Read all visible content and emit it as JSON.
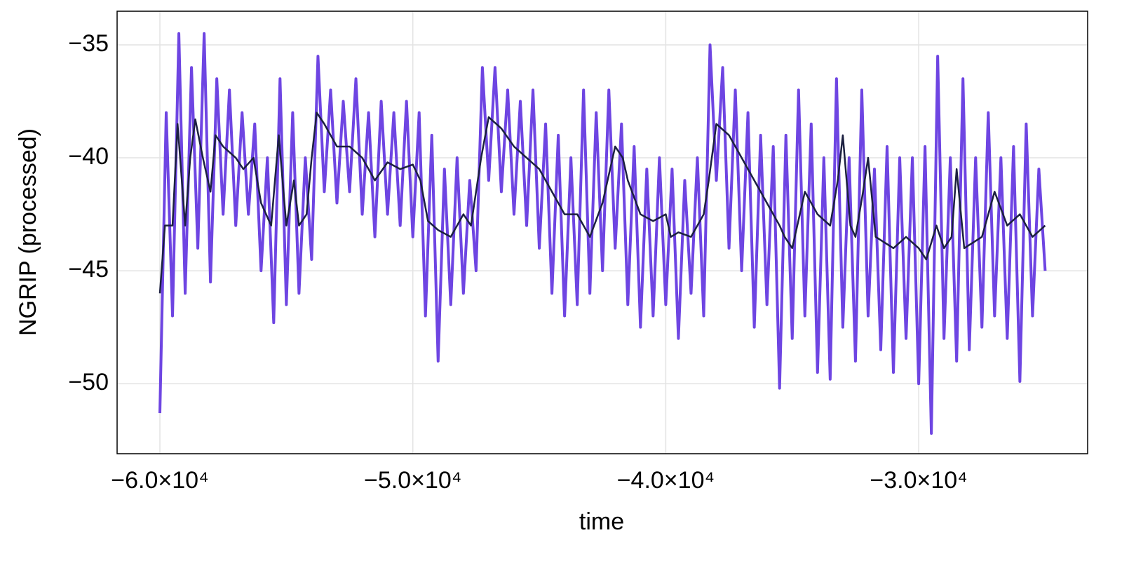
{
  "chart_data": {
    "type": "line",
    "xlabel": "time",
    "ylabel": "NGRIP (processed)",
    "xlim": [
      -61691,
      -23321
    ],
    "ylim": [
      -53.1,
      -33.51
    ],
    "xticks": [
      {
        "value": -60000,
        "label": "−6.0×10⁴"
      },
      {
        "value": -50000,
        "label": "−5.0×10⁴"
      },
      {
        "value": -40000,
        "label": "−4.0×10⁴"
      },
      {
        "value": -30000,
        "label": "−3.0×10⁴"
      }
    ],
    "yticks": [
      {
        "value": -35,
        "label": "−35"
      },
      {
        "value": -40,
        "label": "−40"
      },
      {
        "value": -45,
        "label": "−45"
      },
      {
        "value": -50,
        "label": "−50"
      }
    ],
    "grid": true,
    "series": [
      {
        "color": "#6e45e2",
        "width": 4,
        "x": [
          -60000,
          -59750,
          -59500,
          -59250,
          -59000,
          -58750,
          -58500,
          -58250,
          -58000,
          -57750,
          -57500,
          -57250,
          -57000,
          -56750,
          -56500,
          -56250,
          -56000,
          -55750,
          -55500,
          -55250,
          -55000,
          -54750,
          -54500,
          -54250,
          -54000,
          -53750,
          -53500,
          -53250,
          -53000,
          -52750,
          -52500,
          -52250,
          -52000,
          -51750,
          -51500,
          -51250,
          -51000,
          -50750,
          -50500,
          -50250,
          -50000,
          -49750,
          -49500,
          -49250,
          -49000,
          -48750,
          -48500,
          -48250,
          -48000,
          -47750,
          -47500,
          -47250,
          -47000,
          -46750,
          -46500,
          -46250,
          -46000,
          -45750,
          -45500,
          -45250,
          -45000,
          -44750,
          -44500,
          -44250,
          -44000,
          -43750,
          -43500,
          -43250,
          -43000,
          -42750,
          -42500,
          -42250,
          -42000,
          -41750,
          -41500,
          -41250,
          -41000,
          -40750,
          -40500,
          -40250,
          -40000,
          -39750,
          -39500,
          -39250,
          -39000,
          -38750,
          -38500,
          -38250,
          -38000,
          -37750,
          -37500,
          -37250,
          -37000,
          -36750,
          -36500,
          -36250,
          -36000,
          -35750,
          -35500,
          -35250,
          -35000,
          -34750,
          -34500,
          -34250,
          -34000,
          -33750,
          -33500,
          -33250,
          -33000,
          -32750,
          -32500,
          -32250,
          -32000,
          -31750,
          -31500,
          -31250,
          -31000,
          -30750,
          -30500,
          -30250,
          -30000,
          -29750,
          -29500,
          -29250,
          -29000,
          -28750,
          -28500,
          -28250,
          -28000,
          -27750,
          -27500,
          -27250,
          -27000,
          -26750,
          -26500,
          -26250,
          -26000,
          -25750,
          -25500,
          -25250,
          -25000
        ],
        "values": [
          -51.3,
          -38,
          -47,
          -34.5,
          -46,
          -36,
          -44,
          -34.5,
          -45.5,
          -36.5,
          -42.5,
          -37,
          -43,
          -38,
          -42.5,
          -38.5,
          -45,
          -40,
          -47.3,
          -36.5,
          -46.5,
          -38,
          -46,
          -40,
          -44.5,
          -35.5,
          -41.5,
          -37,
          -42,
          -37.5,
          -41.5,
          -36.5,
          -42.5,
          -38,
          -43.5,
          -37.5,
          -42.5,
          -38,
          -43,
          -37.5,
          -43.5,
          -38,
          -47,
          -39,
          -49,
          -40.5,
          -46.5,
          -40,
          -46,
          -41,
          -45,
          -36,
          -41,
          -36,
          -41.5,
          -37,
          -42.5,
          -37.5,
          -43,
          -37,
          -44,
          -38.5,
          -46,
          -39,
          -47,
          -40,
          -46.5,
          -37,
          -46,
          -38,
          -45,
          -37,
          -44,
          -38.5,
          -46.5,
          -39.5,
          -47.5,
          -40.5,
          -47,
          -40,
          -46.5,
          -40.5,
          -48,
          -41,
          -46,
          -40,
          -47,
          -35,
          -41,
          -36,
          -44,
          -37,
          -45,
          -38,
          -47.5,
          -39,
          -46.5,
          -39.5,
          -50.2,
          -39,
          -48,
          -37,
          -47,
          -38.5,
          -49.5,
          -40,
          -49.8,
          -36.5,
          -47.5,
          -40,
          -49,
          -37,
          -47,
          -40.5,
          -48.5,
          -39.5,
          -49.5,
          -40,
          -48,
          -40,
          -50,
          -39.5,
          -52.2,
          -35.5,
          -48,
          -40,
          -49,
          -36.5,
          -48.5,
          -40,
          -47.5,
          -38,
          -47,
          -40,
          -48,
          -39.5,
          -49.9,
          -38.5,
          -47,
          -40.5,
          -45
        ]
      },
      {
        "color": "#1c2040",
        "width": 2.5,
        "x": [
          -60000,
          -59800,
          -59500,
          -59300,
          -59000,
          -58800,
          -58600,
          -58300,
          -58000,
          -57800,
          -57500,
          -57000,
          -56700,
          -56300,
          -56000,
          -55600,
          -55300,
          -55000,
          -54700,
          -54500,
          -54200,
          -54000,
          -53800,
          -53500,
          -53000,
          -52500,
          -52000,
          -51500,
          -51000,
          -50500,
          -50000,
          -49700,
          -49400,
          -49000,
          -48500,
          -48000,
          -47700,
          -47300,
          -47000,
          -46500,
          -46000,
          -45500,
          -45000,
          -44500,
          -44000,
          -43500,
          -43000,
          -42500,
          -42000,
          -41700,
          -41500,
          -41000,
          -40500,
          -40000,
          -39800,
          -39500,
          -39000,
          -38500,
          -38300,
          -38000,
          -37500,
          -37000,
          -36500,
          -36000,
          -35500,
          -35300,
          -35000,
          -34700,
          -34500,
          -34000,
          -33500,
          -33200,
          -33000,
          -32700,
          -32500,
          -32200,
          -32000,
          -31700,
          -31000,
          -30500,
          -30000,
          -29700,
          -29300,
          -29000,
          -28700,
          -28500,
          -28200,
          -27500,
          -27000,
          -26500,
          -26000,
          -25500,
          -25000
        ],
        "values": [
          -46,
          -43,
          -43,
          -38.5,
          -43,
          -40,
          -38.3,
          -40,
          -41.5,
          -39,
          -39.5,
          -40,
          -40.5,
          -40,
          -42,
          -43,
          -39,
          -43,
          -41,
          -43,
          -42.5,
          -40,
          -38,
          -38.5,
          -39.5,
          -39.5,
          -40,
          -41,
          -40.2,
          -40.5,
          -40.3,
          -41,
          -42.8,
          -43.2,
          -43.5,
          -42.5,
          -43,
          -40,
          -38.2,
          -38.7,
          -39.5,
          -40,
          -40.5,
          -41.5,
          -42.5,
          -42.5,
          -43.5,
          -42,
          -39.5,
          -40,
          -41,
          -42.5,
          -42.8,
          -42.5,
          -43.5,
          -43.3,
          -43.5,
          -42.5,
          -41,
          -38.5,
          -39,
          -40,
          -41,
          -42,
          -43,
          -43.5,
          -44,
          -42.5,
          -41.5,
          -42.5,
          -43,
          -41,
          -39,
          -43,
          -43.5,
          -41.5,
          -40,
          -43.5,
          -44,
          -43.5,
          -44,
          -44.5,
          -43,
          -44,
          -43.5,
          -40.5,
          -44,
          -43.5,
          -41.5,
          -43,
          -42.5,
          -43.5,
          -43
        ]
      }
    ]
  }
}
